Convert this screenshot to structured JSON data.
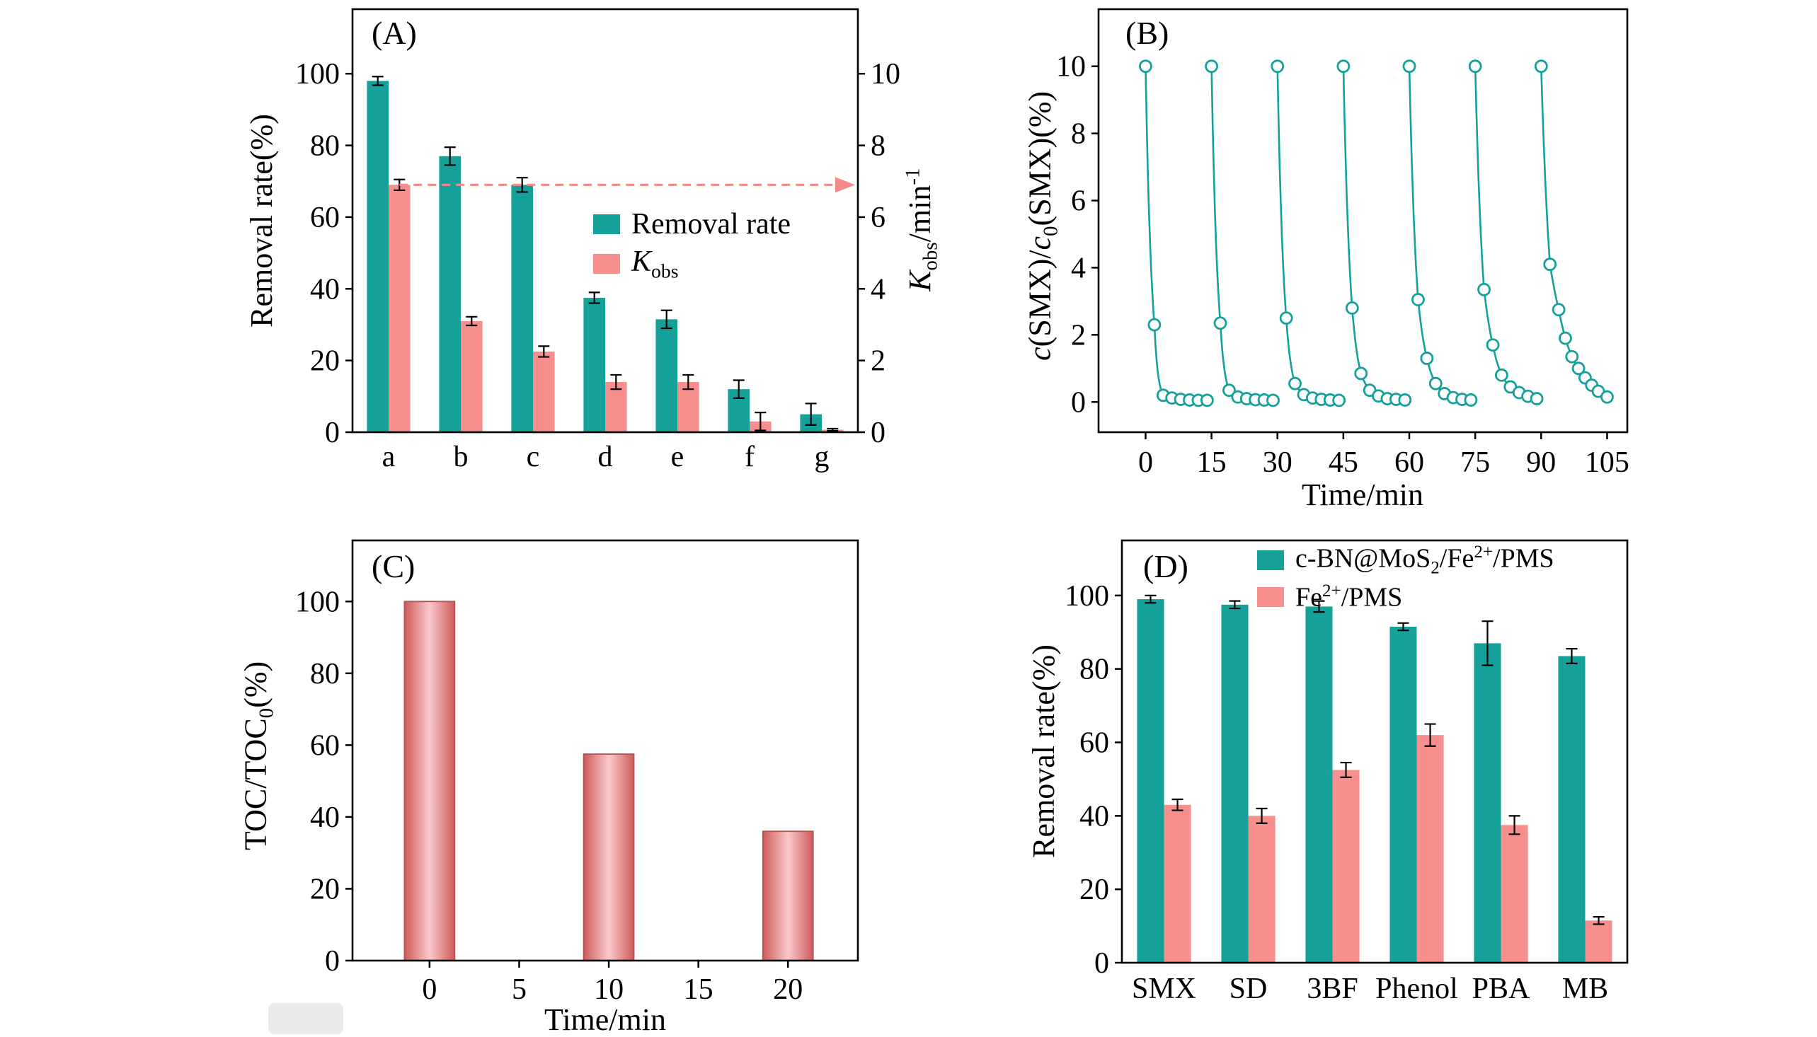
{
  "figure": {
    "background": "#ffffff",
    "teal": "#16a09a",
    "pink": "#f78f8f",
    "arrow": "#f48a8a"
  },
  "labels": {
    "time_axis": "Time/min",
    "a_y_right": {
      "k": "K",
      "sub": "obs",
      "unit": "/min",
      "sup": "-1"
    },
    "a_legend_2": {
      "k": "K",
      "sub": "obs"
    },
    "b_y": {
      "c1": "c",
      "p1": "(SMX)/",
      "c2": "c",
      "sub": "0",
      "p2": "(SMX)(%)"
    },
    "c_y": {
      "p1": "TOC/TOC",
      "sub": "0",
      "p2": "(%)"
    },
    "d_legend_1": {
      "p1": "c-BN@MoS",
      "sub": "2",
      "p2": "/Fe",
      "sup": "2+",
      "p3": "/PMS"
    },
    "d_legend_2": {
      "p1": "Fe",
      "sup": "2+",
      "p2": "/PMS"
    }
  },
  "chart_data": [
    {
      "id": "A",
      "type": "bar",
      "panel_label": "(A)",
      "categories": [
        "a",
        "b",
        "c",
        "d",
        "e",
        "f",
        "g"
      ],
      "series": [
        {
          "name": "Removal rate",
          "axis": "left",
          "color": "#16a09a",
          "values": [
            98,
            77,
            69,
            37.5,
            31.5,
            12,
            5
          ],
          "errors": [
            1.2,
            2.5,
            2,
            1.5,
            2.5,
            2.5,
            3
          ]
        },
        {
          "name": "Kobs",
          "axis": "right",
          "color": "#f78f8f",
          "values": [
            6.9,
            3.1,
            2.25,
            1.4,
            1.4,
            0.3,
            0.07
          ],
          "errors": [
            0.15,
            0.12,
            0.15,
            0.2,
            0.2,
            0.25,
            0.03
          ]
        }
      ],
      "ylabel_left": "Removal rate(%)",
      "ylabel_right": "Kobs/min-1",
      "yticks_left": [
        0,
        20,
        40,
        60,
        80,
        100
      ],
      "ylim_left": [
        0,
        118
      ],
      "yticks_right": [
        0,
        2,
        4,
        6,
        8,
        10
      ],
      "ylim_right": [
        0,
        11.8
      ],
      "dashed_arrow_y_right": 6.9,
      "arrow_color": "#f48a8a",
      "legend": [
        "Removal rate",
        "Kobs"
      ],
      "legend_position": "inside-middle"
    },
    {
      "id": "B",
      "type": "line",
      "panel_label": "(B)",
      "xlabel": "Time/min",
      "ylabel": "c(SMX)/c0(SMX)(%)",
      "xticks": [
        0,
        15,
        30,
        45,
        60,
        75,
        90,
        105
      ],
      "yticks": [
        0,
        2,
        4,
        6,
        8,
        10
      ],
      "xlim": [
        -10.7,
        109.6
      ],
      "ylim": [
        -0.9,
        11.7
      ],
      "color": "#16a09a",
      "marker": "open-circle",
      "cycles": [
        [
          [
            0,
            10
          ],
          [
            2,
            2.3
          ],
          [
            4,
            0.2
          ],
          [
            6,
            0.12
          ],
          [
            8,
            0.08
          ],
          [
            10,
            0.06
          ],
          [
            12,
            0.05
          ],
          [
            14,
            0.05
          ]
        ],
        [
          [
            15,
            10
          ],
          [
            17,
            2.35
          ],
          [
            19,
            0.35
          ],
          [
            21,
            0.15
          ],
          [
            23,
            0.1
          ],
          [
            25,
            0.07
          ],
          [
            27,
            0.06
          ],
          [
            29,
            0.05
          ]
        ],
        [
          [
            30,
            10
          ],
          [
            32,
            2.5
          ],
          [
            34,
            0.55
          ],
          [
            36,
            0.22
          ],
          [
            38,
            0.12
          ],
          [
            40,
            0.08
          ],
          [
            42,
            0.06
          ],
          [
            44,
            0.05
          ]
        ],
        [
          [
            45,
            10
          ],
          [
            47,
            2.8
          ],
          [
            49,
            0.85
          ],
          [
            51,
            0.35
          ],
          [
            53,
            0.18
          ],
          [
            55,
            0.1
          ],
          [
            57,
            0.08
          ],
          [
            59,
            0.06
          ]
        ],
        [
          [
            60,
            10
          ],
          [
            62,
            3.05
          ],
          [
            64,
            1.3
          ],
          [
            66,
            0.55
          ],
          [
            68,
            0.25
          ],
          [
            70,
            0.13
          ],
          [
            72,
            0.08
          ],
          [
            74,
            0.06
          ]
        ],
        [
          [
            75,
            10
          ],
          [
            77,
            3.35
          ],
          [
            79,
            1.7
          ],
          [
            81,
            0.8
          ],
          [
            83,
            0.45
          ],
          [
            85,
            0.28
          ],
          [
            87,
            0.17
          ],
          [
            89,
            0.1
          ]
        ],
        [
          [
            90,
            10
          ],
          [
            92,
            4.1
          ],
          [
            94,
            2.75
          ],
          [
            95.5,
            1.9
          ],
          [
            97,
            1.35
          ],
          [
            98.5,
            1.0
          ],
          [
            100,
            0.72
          ],
          [
            101.5,
            0.5
          ],
          [
            103,
            0.32
          ],
          [
            105,
            0.15
          ]
        ]
      ]
    },
    {
      "id": "C",
      "type": "bar",
      "panel_label": "(C)",
      "xlabel": "Time/min",
      "ylabel": "TOC/TOC0(%)",
      "x": [
        0,
        10,
        20
      ],
      "values": [
        100,
        57.5,
        36
      ],
      "bar_width": 2.8,
      "xticks": [
        0,
        5,
        10,
        15,
        20
      ],
      "yticks": [
        0,
        20,
        40,
        60,
        80,
        100
      ],
      "xlim": [
        -4.3,
        23.9
      ],
      "ylim": [
        0,
        117
      ],
      "bar_edge_color": "#cf5a5a",
      "bar_center_color": "#f9caca",
      "bar_outline_color": "#b85050"
    },
    {
      "id": "D",
      "type": "bar",
      "panel_label": "(D)",
      "categories": [
        "SMX",
        "SD",
        "3BF",
        "Phenol",
        "PBA",
        "MB"
      ],
      "series": [
        {
          "name": "c-BN@MoS2/Fe2+/PMS",
          "color": "#16a09a",
          "values": [
            99,
            97.5,
            97,
            91.5,
            87,
            83.5
          ],
          "errors": [
            1,
            1,
            1.5,
            1,
            6,
            2
          ]
        },
        {
          "name": "Fe2+/PMS",
          "color": "#f78f8f",
          "values": [
            43,
            40,
            52.5,
            62,
            37.5,
            11.5
          ],
          "errors": [
            1.5,
            2,
            2,
            3,
            2.5,
            1
          ]
        }
      ],
      "ylabel": "Removal rate(%)",
      "yticks": [
        0,
        20,
        40,
        60,
        80,
        100
      ],
      "ylim": [
        0,
        115
      ],
      "legend_position": "inside-top"
    }
  ]
}
